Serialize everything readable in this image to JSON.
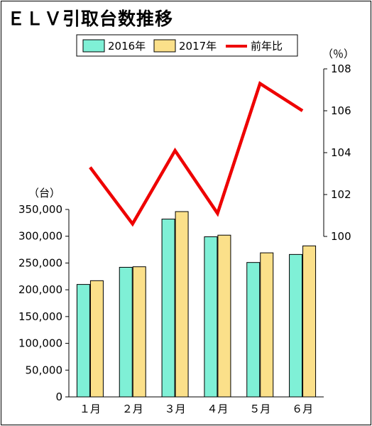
{
  "chart_data": {
    "type": "bar",
    "title": "ＥＬＶ引取台数推移",
    "categories": [
      "１月",
      "２月",
      "３月",
      "４月",
      "５月",
      "６月"
    ],
    "series": [
      {
        "name": "2016年",
        "type": "bar",
        "axis": "left",
        "color": "#7ff0d6",
        "values": [
          210000,
          242000,
          332000,
          299000,
          251000,
          266000
        ]
      },
      {
        "name": "2017年",
        "type": "bar",
        "axis": "left",
        "color": "#fbe08a",
        "values": [
          217000,
          243000,
          346000,
          302000,
          269000,
          282000
        ]
      },
      {
        "name": "前年比",
        "type": "line",
        "axis": "right",
        "color": "#ee0000",
        "values": [
          103.3,
          100.6,
          104.1,
          101.1,
          107.3,
          106.0
        ]
      }
    ],
    "left_axis": {
      "unit": "（台）",
      "ylim": [
        0,
        350000
      ],
      "tick_values": [
        0,
        50000,
        100000,
        150000,
        200000,
        250000,
        300000,
        350000
      ],
      "ticks": [
        "0",
        "50,000",
        "100,000",
        "150,000",
        "200,000",
        "250,000",
        "300,000",
        "350,000"
      ]
    },
    "right_axis": {
      "unit": "（％）",
      "ylim": [
        100,
        108
      ],
      "tick_values": [
        100,
        102,
        104,
        106,
        108
      ],
      "ticks": [
        "100",
        "102",
        "104",
        "106",
        "108"
      ]
    },
    "legend": {
      "placement": "top-center",
      "items": [
        "2016年",
        "2017年",
        "前年比"
      ]
    },
    "grid": false
  }
}
